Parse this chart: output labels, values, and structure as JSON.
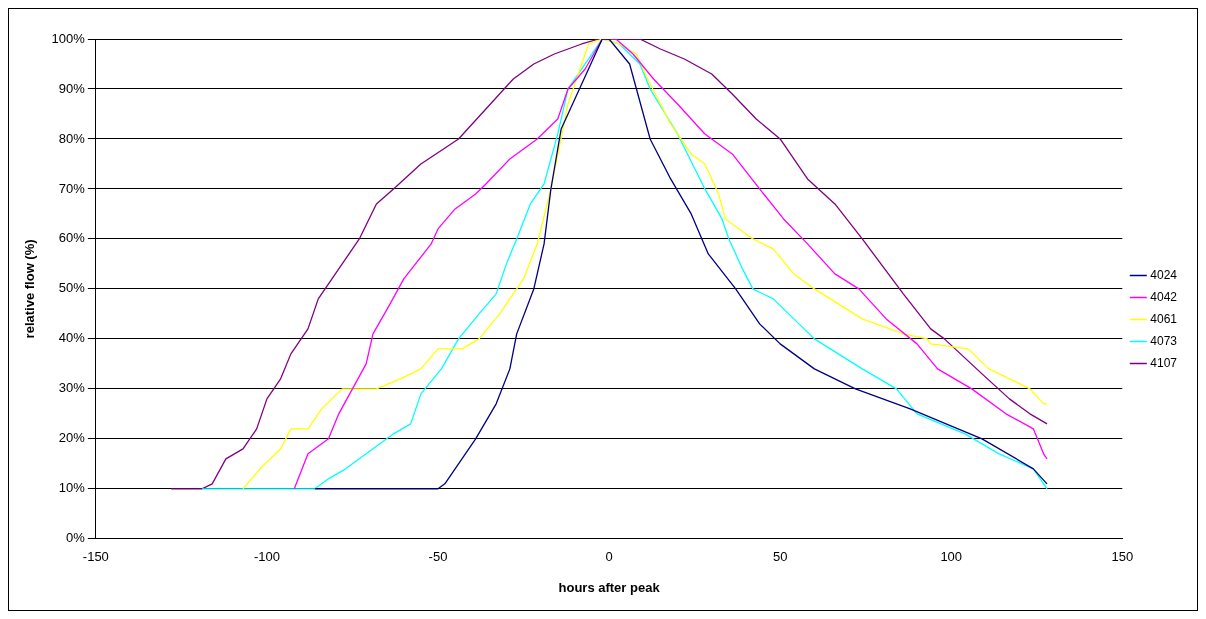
{
  "chart_data": {
    "type": "line",
    "xlabel": "hours after peak",
    "ylabel": "relative flow (%)",
    "xlim": [
      -150,
      150
    ],
    "xticks": [
      -150,
      -100,
      -50,
      0,
      50,
      100,
      150
    ],
    "ylim": [
      0,
      100
    ],
    "yticks": [
      {
        "value": 0,
        "label": "0%"
      },
      {
        "value": 10,
        "label": "10%"
      },
      {
        "value": 20,
        "label": "20%"
      },
      {
        "value": 30,
        "label": "30%"
      },
      {
        "value": 40,
        "label": "40%"
      },
      {
        "value": 50,
        "label": "50%"
      },
      {
        "value": 60,
        "label": "60%"
      },
      {
        "value": 70,
        "label": "70%"
      },
      {
        "value": 80,
        "label": "80%"
      },
      {
        "value": 90,
        "label": "90%"
      },
      {
        "value": 100,
        "label": "100%"
      }
    ],
    "grid": "y",
    "legend": "right",
    "marker": "none",
    "line_style": "solid",
    "series": [
      {
        "name": "4024",
        "color": "#000080",
        "x": [
          -86,
          -50,
          -48,
          -44,
          -39,
          -33,
          -29,
          -27,
          -22,
          -19,
          -17,
          -14,
          -6,
          -2,
          0,
          6,
          8,
          12,
          18,
          24,
          29,
          37,
          44,
          50,
          60,
          72,
          88,
          109,
          124,
          128
        ],
        "values": [
          10,
          10,
          11,
          15,
          20,
          27,
          34,
          41,
          50,
          59,
          70,
          82,
          94,
          100,
          100,
          95,
          90,
          80,
          72,
          65,
          57,
          50,
          43,
          39,
          34,
          30,
          26,
          20,
          14,
          11
        ]
      },
      {
        "name": "4042",
        "color": "#ff00ff",
        "x": [
          -92,
          -88,
          -82,
          -79,
          -75,
          -71,
          -69,
          -64,
          -60,
          -52,
          -50,
          -45,
          -39,
          -36,
          -29,
          -21,
          -15,
          -12,
          -7,
          -2,
          2,
          7,
          13,
          20,
          28,
          36,
          44,
          51,
          58,
          66,
          73,
          81,
          90,
          96,
          106,
          116,
          124,
          127,
          128
        ],
        "values": [
          10,
          17,
          20,
          25,
          30,
          35,
          41,
          47,
          52,
          59,
          62,
          66,
          69,
          71,
          76,
          80,
          84,
          90,
          94,
          100,
          100,
          97,
          92,
          87,
          81,
          77,
          70,
          64,
          59,
          53,
          50,
          44,
          39,
          34,
          30,
          25,
          22,
          17,
          16
        ]
      },
      {
        "name": "4061",
        "color": "#ffff00",
        "x": [
          -107,
          -102,
          -96,
          -93,
          -88,
          -84,
          -78,
          -68,
          -61,
          -55,
          -50,
          -43,
          -38,
          -32,
          -25,
          -21,
          -17,
          -12,
          -6,
          -2,
          3,
          8,
          12,
          18,
          24,
          28,
          32,
          34,
          42,
          48,
          54,
          60,
          74,
          86,
          93,
          94,
          105,
          111,
          123,
          127,
          128
        ],
        "values": [
          10,
          14,
          18,
          22,
          22,
          26,
          30,
          30,
          32,
          34,
          38,
          38,
          40,
          45,
          52,
          59,
          70,
          87,
          99,
          100,
          99,
          97,
          91,
          83,
          77,
          75,
          69,
          64,
          60,
          58,
          53,
          50,
          44,
          41,
          40,
          39,
          38,
          34,
          30,
          27,
          27
        ]
      },
      {
        "name": "4073",
        "color": "#00ffff",
        "x": [
          -119,
          -86,
          -82,
          -77,
          -69,
          -63,
          -58,
          -55,
          -49,
          -44,
          -38,
          -33,
          -30,
          -27,
          -23,
          -19,
          -15,
          -12,
          -6,
          -2,
          3,
          9,
          12,
          20,
          28,
          33,
          35,
          39,
          42,
          48,
          60,
          74,
          84,
          90,
          104,
          114,
          124,
          128
        ],
        "values": [
          10,
          10,
          12,
          14,
          18,
          21,
          23,
          29,
          34,
          40,
          45,
          49,
          55,
          60,
          67,
          71,
          81,
          90,
          96,
          100,
          99,
          95,
          90,
          81,
          70,
          64,
          60,
          54,
          50,
          48,
          40,
          34,
          30,
          25,
          21,
          17,
          14,
          10
        ]
      },
      {
        "name": "4107",
        "color": "#800080",
        "x": [
          -128,
          -119,
          -116,
          -112,
          -107,
          -103,
          -100,
          -96,
          -93,
          -88,
          -85,
          -80,
          -73,
          -68,
          -63,
          -55,
          -44,
          -36,
          -28,
          -22,
          -16,
          -8,
          -3,
          9,
          15,
          22,
          30,
          36,
          43,
          50,
          58,
          66,
          74,
          86,
          94,
          98,
          109,
          117,
          123,
          128
        ],
        "values": [
          10,
          10,
          11,
          16,
          18,
          22,
          28,
          32,
          37,
          42,
          48,
          53,
          60,
          67,
          70,
          75,
          80,
          86,
          92,
          95,
          97,
          99,
          100,
          100,
          98,
          96,
          93,
          89,
          84,
          80,
          72,
          67,
          60,
          49,
          42,
          40,
          33,
          28,
          25,
          23
        ]
      }
    ]
  }
}
